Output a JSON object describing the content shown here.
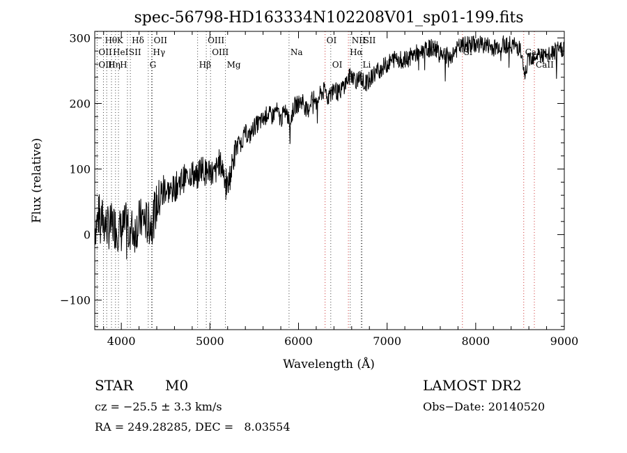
{
  "chart_data": {
    "type": "line",
    "title": "spec-56798-HD163334N102208V01_sp01-199.fits",
    "xlabel": "Wavelength (Å)",
    "ylabel": "Flux (relative)",
    "xlim": [
      3700,
      9000
    ],
    "ylim": [
      -145,
      310
    ],
    "xticks": [
      4000,
      5000,
      6000,
      7000,
      8000,
      9000
    ],
    "yticks": [
      -100,
      0,
      100,
      200,
      300
    ],
    "grid": false,
    "series": [
      {
        "x": [
          3700,
          3750,
          3800,
          3850,
          3900,
          3950,
          4000,
          4050,
          4100,
          4150,
          4200,
          4250,
          4300,
          4350,
          4400,
          4450,
          4500,
          4550,
          4600,
          4650,
          4700,
          4750,
          4800,
          4850,
          4900,
          4950,
          5000,
          5050,
          5100,
          5150,
          5200,
          5250,
          5300,
          5350,
          5400,
          5450,
          5500,
          5550,
          5600,
          5650,
          5700,
          5750,
          5800,
          5850,
          5900,
          5950,
          6000,
          6050,
          6100,
          6150,
          6200,
          6250,
          6300,
          6350,
          6400,
          6450,
          6500,
          6550,
          6600,
          6650,
          6700,
          6750,
          6800,
          6850,
          6900,
          6950,
          7000,
          7100,
          7200,
          7300,
          7400,
          7500,
          7600,
          7700,
          7800,
          7900,
          8000,
          8100,
          8200,
          8300,
          8400,
          8500,
          8550,
          8600,
          8700,
          8800,
          8900,
          9000
        ],
        "values": [
          10,
          30,
          20,
          10,
          15,
          10,
          5,
          15,
          10,
          5,
          20,
          25,
          15,
          20,
          45,
          60,
          70,
          65,
          70,
          80,
          85,
          90,
          95,
          85,
          105,
          95,
          100,
          90,
          110,
          100,
          70,
          105,
          135,
          140,
          155,
          150,
          165,
          170,
          175,
          185,
          180,
          190,
          175,
          190,
          170,
          195,
          200,
          205,
          185,
          210,
          200,
          215,
          220,
          210,
          225,
          215,
          225,
          235,
          245,
          235,
          240,
          230,
          235,
          245,
          250,
          255,
          260,
          270,
          265,
          275,
          280,
          285,
          280,
          270,
          285,
          290,
          290,
          290,
          285,
          290,
          290,
          285,
          240,
          270,
          275,
          270,
          280,
          285
        ]
      }
    ],
    "line_markers": [
      {
        "label": "Hθ",
        "x": 3798,
        "row": 0,
        "color": "#444444"
      },
      {
        "label": "K",
        "x": 3934,
        "row": 0,
        "color": "#444444"
      },
      {
        "label": "Hδ",
        "x": 4102,
        "row": 0,
        "color": "#444444"
      },
      {
        "label": "OII",
        "x": 4350,
        "row": 0,
        "color": "#444444"
      },
      {
        "label": "OIII",
        "x": 4959,
        "row": 0,
        "color": "#444444"
      },
      {
        "label": "OI",
        "x": 6300,
        "row": 0,
        "color": "#cc3333"
      },
      {
        "label": "NII",
        "x": 6584,
        "row": 0,
        "color": "#444444"
      },
      {
        "label": "SII",
        "x": 6717,
        "row": 0,
        "color": "#444444"
      },
      {
        "label": "OII",
        "x": 3727,
        "row": 1,
        "color": "#444444"
      },
      {
        "label": "HeI",
        "x": 3889,
        "row": 1,
        "color": "#444444"
      },
      {
        "label": "SII",
        "x": 4069,
        "row": 1,
        "color": "#444444"
      },
      {
        "label": "Hγ",
        "x": 4341,
        "row": 1,
        "color": "#444444"
      },
      {
        "label": "OIII",
        "x": 5007,
        "row": 1,
        "color": "#444444"
      },
      {
        "label": "Na",
        "x": 5893,
        "row": 1,
        "color": "#444444"
      },
      {
        "label": "Hα",
        "x": 6563,
        "row": 1,
        "color": "#cc3333"
      },
      {
        "label": "Si",
        "x": 7850,
        "row": 1,
        "color": "#cc3333"
      },
      {
        "label": "CaII",
        "x": 8542,
        "row": 1,
        "color": "#cc3333"
      },
      {
        "label": "OIII",
        "x": 3727,
        "row": 2,
        "color": "#444444"
      },
      {
        "label": "Hη",
        "x": 3835,
        "row": 2,
        "color": "#444444"
      },
      {
        "label": "H",
        "x": 3968,
        "row": 2,
        "color": "#444444"
      },
      {
        "label": "G",
        "x": 4304,
        "row": 2,
        "color": "#444444"
      },
      {
        "label": "Hβ",
        "x": 4861,
        "row": 2,
        "color": "#444444"
      },
      {
        "label": "Mg",
        "x": 5175,
        "row": 2,
        "color": "#444444"
      },
      {
        "label": "OI",
        "x": 6364,
        "row": 2,
        "color": "#444444"
      },
      {
        "label": "Li",
        "x": 6708,
        "row": 2,
        "color": "#444444"
      },
      {
        "label": "CaII",
        "x": 8662,
        "row": 2,
        "color": "#cc3333"
      }
    ]
  },
  "info": {
    "object_class": "STAR",
    "subclass": "M0",
    "survey": "LAMOST DR2",
    "cz": "cz = −25.5 ± 3.3 km/s",
    "obs_date": "Obs−Date: 20140520",
    "coords": "RA = 249.28285, DEC =   8.03554"
  }
}
